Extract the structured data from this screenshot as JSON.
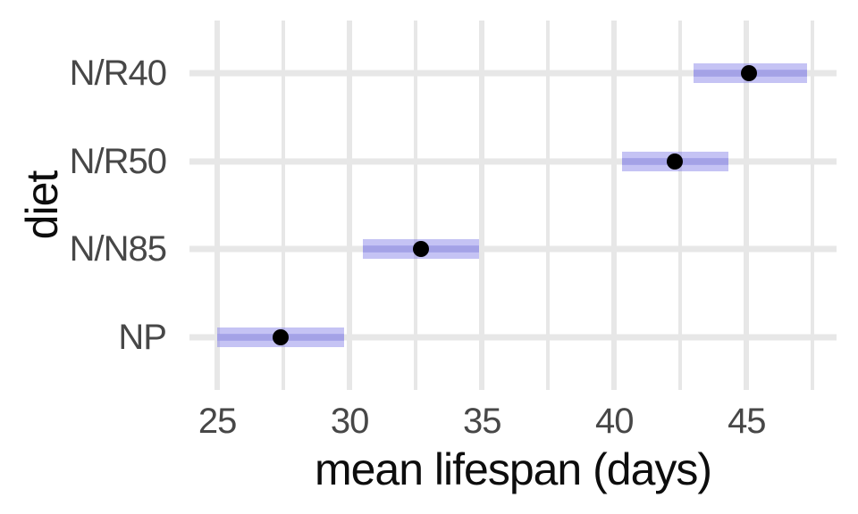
{
  "chart_data": {
    "type": "pointrange",
    "orientation": "horizontal",
    "title": "",
    "xlabel": "mean lifespan (days)",
    "ylabel": "diet",
    "categories": [
      "N/R40",
      "N/R50",
      "N/N85",
      "NP"
    ],
    "series": [
      {
        "category": "N/R40",
        "mean": 45.1,
        "lower": 43.0,
        "upper": 47.3
      },
      {
        "category": "N/R50",
        "mean": 42.3,
        "lower": 40.3,
        "upper": 44.3
      },
      {
        "category": "N/N85",
        "mean": 32.7,
        "lower": 30.5,
        "upper": 34.9
      },
      {
        "category": "NP",
        "mean": 27.4,
        "lower": 25.0,
        "upper": 29.8
      }
    ],
    "x_ticks": [
      25,
      30,
      35,
      40,
      45
    ],
    "x_minor_ticks": [
      27.5,
      32.5,
      37.5,
      42.5,
      47.5
    ],
    "xlim": [
      23.95,
      48.4
    ],
    "grid": "on",
    "legend": "none",
    "colors": {
      "interval_fill": "rgba(123,119,231,0.44)",
      "interval_stripe": "rgba(123,119,231,0.30)",
      "point": "#000000",
      "grid": "#e7e7e7",
      "axis_text": "#474747",
      "axis_title": "#0d0d0d",
      "background": "#ffffff"
    }
  }
}
